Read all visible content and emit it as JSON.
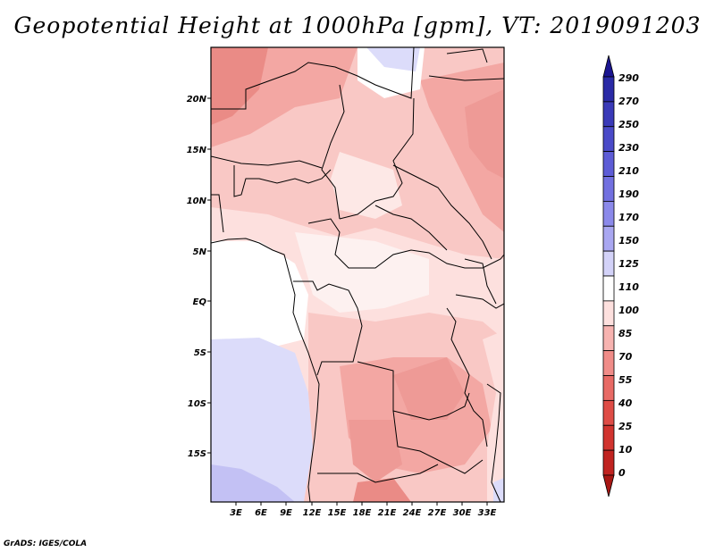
{
  "title": "Geopotential Height at 1000hPa [gpm], VT: 2019091203",
  "credit": "GrADS: IGES/COLA",
  "map": {
    "lat_labels": [
      "20N",
      "15N",
      "10N",
      "5N",
      "EQ",
      "5S",
      "10S",
      "15S"
    ],
    "lon_labels": [
      "3E",
      "6E",
      "9E",
      "12E",
      "15E",
      "18E",
      "21E",
      "24E",
      "27E",
      "30E",
      "33E"
    ]
  },
  "colorbar": {
    "unit": "gpm",
    "levels": [
      "290",
      "270",
      "250",
      "230",
      "210",
      "190",
      "170",
      "150",
      "125",
      "110",
      "100",
      "85",
      "70",
      "55",
      "40",
      "25",
      "10",
      "0"
    ],
    "colors": [
      "#1b1591",
      "#2a2aa6",
      "#3a3ab8",
      "#4a4ac8",
      "#5d5cd6",
      "#7270e0",
      "#8b89ea",
      "#a9a7f1",
      "#d3d2f8",
      "#ffffff",
      "#fde0de",
      "#f7b3b0",
      "#f08c88",
      "#e86a65",
      "#de4c46",
      "#d1342f",
      "#c02320",
      "#a81714"
    ]
  }
}
